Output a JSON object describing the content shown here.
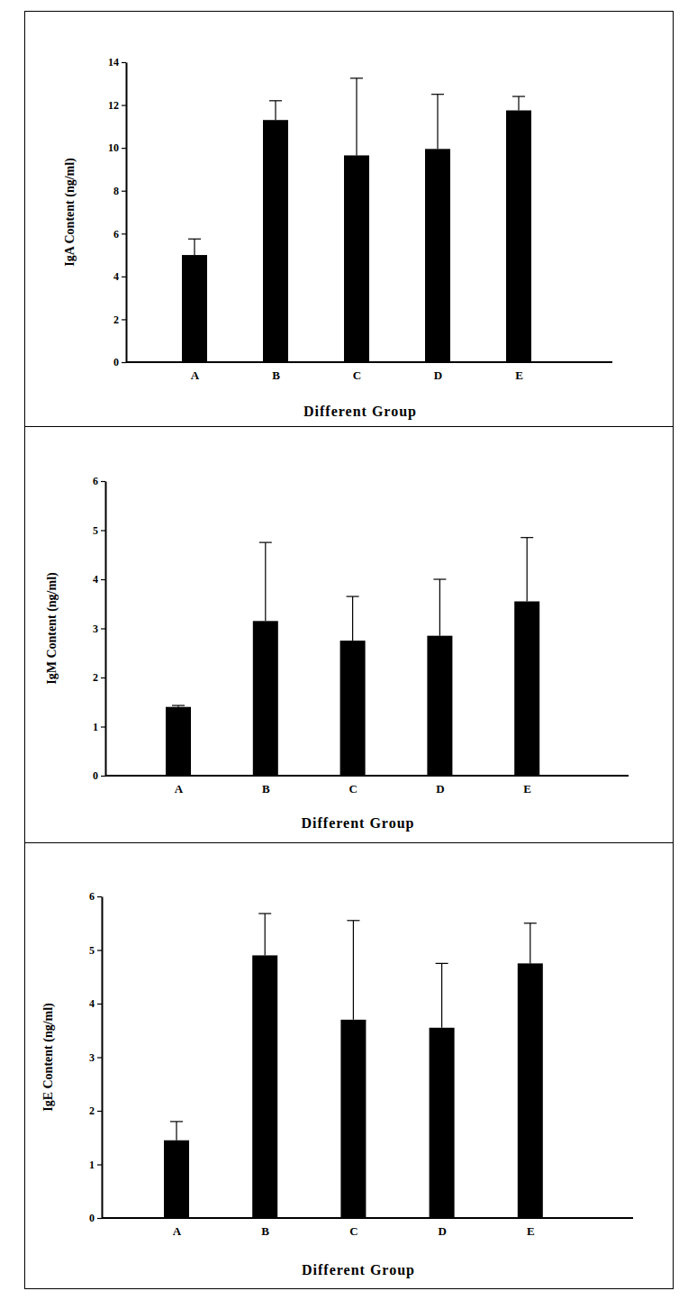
{
  "chart_data": [
    {
      "type": "bar",
      "categories": [
        "A",
        "B",
        "C",
        "D",
        "E"
      ],
      "values": [
        5.0,
        11.3,
        9.65,
        9.95,
        11.75
      ],
      "errors": [
        0.75,
        0.9,
        3.6,
        2.55,
        0.65
      ],
      "color": "#000000",
      "ylim": [
        0,
        14
      ],
      "yticks": [
        0,
        2,
        4,
        6,
        8,
        10,
        12,
        14
      ],
      "y_label": "IgA Content (ng/ml)",
      "x_label": "Different Group"
    },
    {
      "type": "bar",
      "categories": [
        "A",
        "B",
        "C",
        "D",
        "E"
      ],
      "values": [
        1.4,
        3.15,
        2.75,
        2.85,
        3.55
      ],
      "errors": [
        0.03,
        1.6,
        0.9,
        1.15,
        1.3
      ],
      "color": "#000000",
      "ylim": [
        0,
        6
      ],
      "yticks": [
        0,
        1,
        2,
        3,
        4,
        5,
        6
      ],
      "y_label": "IgM Content (ng/ml)",
      "x_label": "Different Group"
    },
    {
      "type": "bar",
      "categories": [
        "A",
        "B",
        "C",
        "D",
        "E"
      ],
      "values": [
        1.45,
        4.9,
        3.7,
        3.55,
        4.75
      ],
      "errors": [
        0.35,
        0.78,
        1.85,
        1.2,
        0.75
      ],
      "color": "#000000",
      "ylim": [
        0,
        6
      ],
      "yticks": [
        0,
        1,
        2,
        3,
        4,
        5,
        6
      ],
      "y_label": "IgE Content (ng/ml)",
      "x_label": "Different Group"
    }
  ]
}
